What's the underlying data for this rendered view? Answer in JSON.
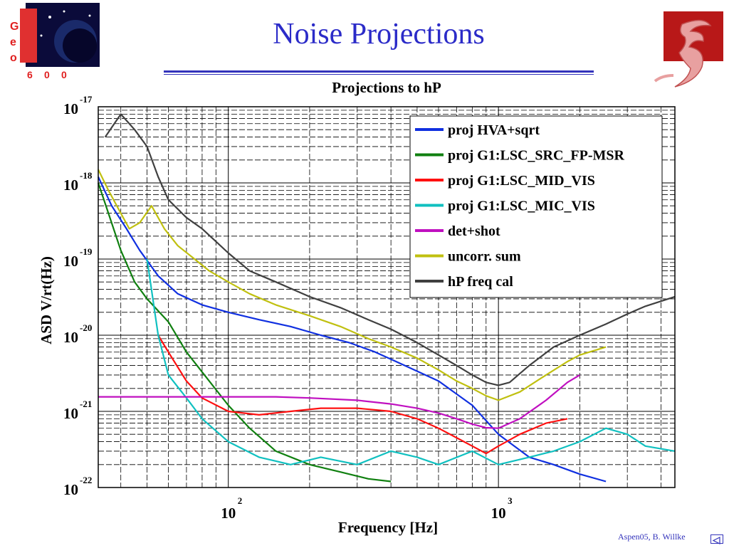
{
  "slide": {
    "title": "Noise Projections",
    "footer": "Aspen05, B. Willke",
    "logo_left_letters": [
      "G",
      "e",
      "o",
      "6",
      "0",
      "0"
    ]
  },
  "icons": {
    "nav": "back-arrow-icon",
    "logo_left": "geo600-planet-logo-icon",
    "logo_right": "xi-institute-logo-icon"
  },
  "colors": {
    "title": "#2b2bc8",
    "accent": "#3333bb"
  },
  "chart_data": {
    "type": "line",
    "title": "Projections to hP",
    "xlabel": "Frequency [Hz]",
    "ylabel": "ASD V/rt(Hz)",
    "xscale": "log",
    "yscale": "log",
    "xlim": [
      33,
      4500
    ],
    "ylim": [
      1e-22,
      1e-17
    ],
    "x_ticks": [
      {
        "value": 100,
        "base": "10",
        "exp": "2"
      },
      {
        "value": 1000,
        "base": "10",
        "exp": "3"
      }
    ],
    "y_ticks": [
      {
        "value": 1e-17,
        "base": "10",
        "exp": "-17"
      },
      {
        "value": 1e-18,
        "base": "10",
        "exp": "-18"
      },
      {
        "value": 1e-19,
        "base": "10",
        "exp": "-19"
      },
      {
        "value": 1e-20,
        "base": "10",
        "exp": "-20"
      },
      {
        "value": 1e-21,
        "base": "10",
        "exp": "-21"
      },
      {
        "value": 1e-22,
        "base": "10",
        "exp": "-22"
      }
    ],
    "grid": true,
    "legend_position": "top-right",
    "series": [
      {
        "name": "proj HVA+sqrt",
        "color": "#1030e0",
        "x": [
          33,
          37,
          42,
          47,
          55,
          65,
          80,
          100,
          130,
          170,
          220,
          280,
          350,
          450,
          600,
          800,
          1000,
          1300,
          1600,
          2000,
          2500
        ],
        "y": [
          1.2e-18,
          5e-19,
          2.5e-19,
          1.3e-19,
          6e-20,
          3.5e-20,
          2.5e-20,
          2e-20,
          1.6e-20,
          1.3e-20,
          1e-20,
          8e-21,
          6e-21,
          4e-21,
          2.5e-21,
          1.2e-21,
          5e-22,
          2.5e-22,
          2e-22,
          1.5e-22,
          1.2e-22
        ]
      },
      {
        "name": "proj G1:LSC_SRC_FP-MSR",
        "color": "#108010",
        "x": [
          33,
          36,
          40,
          45,
          50,
          60,
          70,
          85,
          100,
          120,
          150,
          200,
          260,
          330,
          400
        ],
        "y": [
          1e-18,
          4e-19,
          1.3e-19,
          5e-20,
          3e-20,
          1.5e-20,
          6e-21,
          2.5e-21,
          1.2e-21,
          6e-22,
          3e-22,
          2e-22,
          1.6e-22,
          1.3e-22,
          1.2e-22
        ]
      },
      {
        "name": "proj G1:LSC_MID_VIS",
        "color": "#ff1010",
        "x": [
          55,
          60,
          70,
          80,
          100,
          130,
          170,
          220,
          300,
          400,
          500,
          600,
          700,
          800,
          900,
          1000,
          1200,
          1500,
          1800
        ],
        "y": [
          1e-20,
          6e-21,
          2.5e-21,
          1.5e-21,
          1e-21,
          9e-22,
          1e-21,
          1.1e-21,
          1.1e-21,
          1e-21,
          8e-22,
          6e-22,
          4.5e-22,
          3.5e-22,
          2.8e-22,
          3.5e-22,
          5e-22,
          7e-22,
          8e-22
        ]
      },
      {
        "name": "proj G1:LSC_MIC_VIS",
        "color": "#10c0c0",
        "x": [
          50,
          55,
          60,
          70,
          80,
          100,
          130,
          170,
          220,
          300,
          400,
          500,
          600,
          800,
          1000,
          1300,
          1600,
          2000,
          2500,
          3000,
          3500,
          4500
        ],
        "y": [
          1e-19,
          1e-20,
          3e-21,
          1.5e-21,
          8e-22,
          4e-22,
          2.5e-22,
          2e-22,
          2.5e-22,
          2e-22,
          3e-22,
          2.5e-22,
          2e-22,
          3e-22,
          2e-22,
          2.5e-22,
          3e-22,
          4e-22,
          6e-22,
          5e-22,
          3.5e-22,
          3e-22
        ]
      },
      {
        "name": "det+shot",
        "color": "#c010c0",
        "x": [
          33,
          60,
          100,
          150,
          200,
          300,
          400,
          500,
          600,
          700,
          800,
          900,
          1000,
          1200,
          1500,
          1800,
          2000
        ],
        "y": [
          1.55e-21,
          1.55e-21,
          1.55e-21,
          1.55e-21,
          1.5e-21,
          1.4e-21,
          1.25e-21,
          1.1e-21,
          9.5e-22,
          8e-22,
          6.8e-22,
          6.1e-22,
          6e-22,
          8e-22,
          1.4e-21,
          2.4e-21,
          3e-21
        ]
      },
      {
        "name": "uncorr. sum",
        "color": "#c0c010",
        "x": [
          33,
          36,
          40,
          43,
          47,
          52,
          58,
          65,
          75,
          85,
          100,
          120,
          150,
          200,
          260,
          330,
          400,
          500,
          600,
          700,
          800,
          900,
          1000,
          1200,
          1500,
          1800,
          2000,
          2500
        ],
        "y": [
          1.5e-18,
          8e-19,
          4e-19,
          2.5e-19,
          3e-19,
          5e-19,
          2.5e-19,
          1.5e-19,
          1e-19,
          7e-20,
          5e-20,
          3.5e-20,
          2.5e-20,
          1.8e-20,
          1.3e-20,
          9e-21,
          7e-21,
          5e-21,
          3.5e-21,
          2.5e-21,
          2e-21,
          1.6e-21,
          1.4e-21,
          1.8e-21,
          3e-21,
          4.5e-21,
          5.5e-21,
          7e-21
        ]
      },
      {
        "name": "hP freq cal",
        "color": "#404040",
        "x": [
          35,
          40,
          45,
          50,
          55,
          60,
          70,
          80,
          90,
          100,
          120,
          150,
          200,
          260,
          330,
          400,
          500,
          600,
          700,
          800,
          900,
          1000,
          1100,
          1300,
          1600,
          2000,
          2500,
          3000,
          3500,
          4000,
          4500
        ],
        "y": [
          4e-18,
          8e-18,
          5e-18,
          3e-18,
          1.2e-18,
          6e-19,
          3.5e-19,
          2.5e-19,
          1.7e-19,
          1.2e-19,
          7e-20,
          5e-20,
          3.2e-20,
          2.3e-20,
          1.6e-20,
          1.2e-20,
          8e-21,
          5.5e-21,
          4e-21,
          3e-21,
          2.4e-21,
          2.2e-21,
          2.4e-21,
          4e-21,
          7e-21,
          1e-20,
          1.4e-20,
          1.9e-20,
          2.4e-20,
          2.8e-20,
          3.2e-20
        ]
      }
    ]
  }
}
